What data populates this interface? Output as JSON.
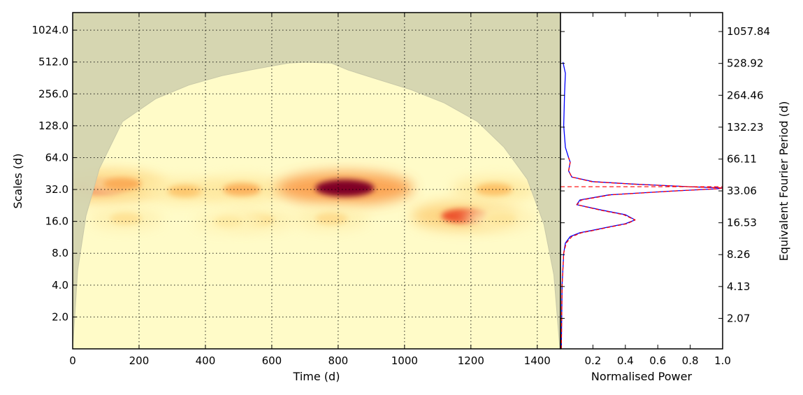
{
  "chart_data": [
    {
      "type": "heatmap",
      "panel": "wavelet-power-spectrum",
      "title": "",
      "xlabel": "Time (d)",
      "ylabel": "Scales (d)",
      "xlim": [
        0,
        1470
      ],
      "x_ticks": [
        0,
        200,
        400,
        600,
        800,
        1000,
        1200,
        1400
      ],
      "y_scale": "log2",
      "ylim": [
        1.0,
        1500.0
      ],
      "y_ticks": [
        2.0,
        4.0,
        8.0,
        16.0,
        32.0,
        64.0,
        128.0,
        256.0,
        512.0,
        1024.0
      ],
      "y_tick_labels": [
        "2.0",
        "4.0",
        "8.0",
        "16.0",
        "32.0",
        "64.0",
        "128.0",
        "256.0",
        "512.0",
        "1024.0"
      ],
      "right_axis_label": "Equivalent Fourier Period (d)",
      "right_tick_labels": [
        "2.07",
        "4.13",
        "8.26",
        "16.53",
        "33.06",
        "66.11",
        "132.23",
        "264.46",
        "528.92",
        "1057.84"
      ],
      "grid": true,
      "colormap": [
        "#fffbc8",
        "#fee9a0",
        "#fdc56b",
        "#f98a3b",
        "#e9402a",
        "#b8101f",
        "#800026"
      ],
      "hotspots": [
        {
          "time": 90,
          "scale": 34,
          "power": 0.68
        },
        {
          "time": 150,
          "scale": 36,
          "power": 0.4
        },
        {
          "time": 340,
          "scale": 31,
          "power": 0.32
        },
        {
          "time": 510,
          "scale": 32,
          "power": 0.38
        },
        {
          "time": 820,
          "scale": 33,
          "power": 1.0
        },
        {
          "time": 1180,
          "scale": 18,
          "power": 0.62
        },
        {
          "time": 1270,
          "scale": 32,
          "power": 0.34
        },
        {
          "time": 160,
          "scale": 17,
          "power": 0.2
        },
        {
          "time": 560,
          "scale": 16.5,
          "power": 0.2
        },
        {
          "time": 470,
          "scale": 16,
          "power": 0.15
        },
        {
          "time": 780,
          "scale": 17,
          "power": 0.22
        },
        {
          "time": 1290,
          "scale": 17,
          "power": 0.18
        }
      ],
      "cone_of_influence": {
        "time": [
          0,
          15,
          40,
          80,
          150,
          250,
          350,
          450,
          550,
          650,
          700,
          780,
          830,
          920,
          1020,
          1120,
          1220,
          1300,
          1370,
          1420,
          1450,
          1468
        ],
        "scale": [
          1.0,
          5.5,
          18,
          50,
          140,
          230,
          310,
          380,
          440,
          500,
          510,
          500,
          430,
          350,
          280,
          210,
          140,
          80,
          40,
          15,
          5,
          1.0
        ],
        "color": "#d4d4b0"
      }
    },
    {
      "type": "line",
      "panel": "global-wavelet-spectrum",
      "title": "",
      "xlabel": "Normalised Power",
      "xlim": [
        0.0,
        1.0
      ],
      "x_ticks": [
        0.2,
        0.4,
        0.6,
        0.8,
        1.0
      ],
      "x_tick_labels": [
        "0.2",
        "0.4",
        "0.6",
        "0.8",
        "1.0"
      ],
      "shared_y_axis": "Scales (d)",
      "series": [
        {
          "style": "solid",
          "color": "#0000ff",
          "points": [
            [
              0.005,
              1.0
            ],
            [
              0.01,
              4.0
            ],
            [
              0.02,
              8.0
            ],
            [
              0.03,
              10.0
            ],
            [
              0.06,
              11.5
            ],
            [
              0.12,
              12.5
            ],
            [
              0.2,
              13.2
            ],
            [
              0.3,
              14.2
            ],
            [
              0.4,
              15.2
            ],
            [
              0.46,
              16.5
            ],
            [
              0.4,
              18.5
            ],
            [
              0.25,
              20.5
            ],
            [
              0.1,
              23.0
            ],
            [
              0.12,
              25.5
            ],
            [
              0.3,
              28.5
            ],
            [
              0.7,
              31.0
            ],
            [
              0.97,
              32.5
            ],
            [
              1.0,
              33.1
            ],
            [
              0.8,
              34.0
            ],
            [
              0.45,
              36.0
            ],
            [
              0.2,
              38.0
            ],
            [
              0.07,
              42.0
            ],
            [
              0.05,
              48.0
            ],
            [
              0.06,
              58.0
            ],
            [
              0.05,
              64.0
            ],
            [
              0.03,
              80.0
            ],
            [
              0.02,
              128.0
            ],
            [
              0.025,
              256.0
            ],
            [
              0.03,
              400.0
            ],
            [
              0.015,
              512.0
            ]
          ]
        },
        {
          "style": "dashed",
          "color": "#ff0000",
          "points": [
            [
              0.005,
              1.0
            ],
            [
              0.01,
              4.0
            ],
            [
              0.02,
              8.0
            ],
            [
              0.035,
              10.0
            ],
            [
              0.07,
              11.5
            ],
            [
              0.13,
              12.5
            ],
            [
              0.21,
              13.2
            ],
            [
              0.31,
              14.2
            ],
            [
              0.41,
              15.2
            ],
            [
              0.46,
              16.5
            ],
            [
              0.39,
              18.5
            ],
            [
              0.24,
              20.5
            ],
            [
              0.1,
              23.0
            ],
            [
              0.13,
              25.5
            ],
            [
              0.31,
              28.5
            ],
            [
              0.71,
              31.0
            ],
            [
              0.97,
              32.5
            ],
            [
              1.0,
              33.1
            ],
            [
              0.79,
              34.0
            ],
            [
              0.44,
              36.0
            ],
            [
              0.19,
              38.0
            ],
            [
              0.07,
              42.0
            ],
            [
              0.05,
              48.0
            ],
            [
              0.06,
              58.0
            ],
            [
              0.05,
              64.0
            ]
          ]
        }
      ],
      "peak_marker": {
        "scale": 34.0,
        "style": "dashed",
        "color": "#ff0000"
      }
    }
  ]
}
